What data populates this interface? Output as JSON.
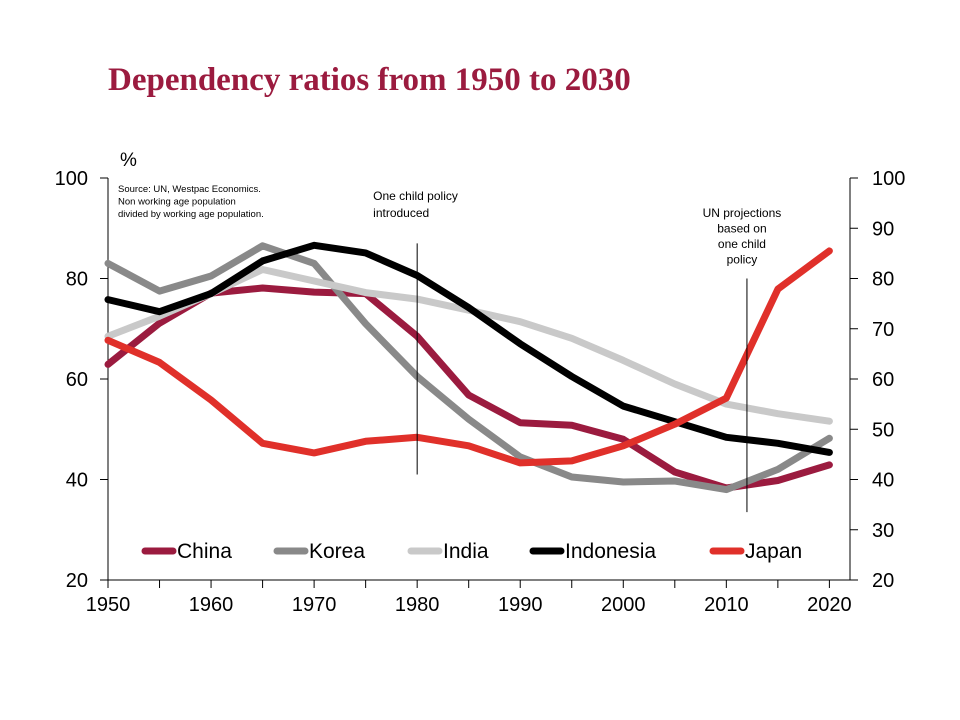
{
  "chart_data": {
    "type": "line",
    "title": "Dependency ratios from 1950 to 2030",
    "ylabel": "%",
    "x": [
      1950,
      1955,
      1960,
      1965,
      1970,
      1975,
      1980,
      1985,
      1990,
      1995,
      2000,
      2005,
      2010,
      2015,
      2020
    ],
    "xlim": [
      1950,
      2022
    ],
    "xticks": [
      1950,
      1960,
      1970,
      1980,
      1990,
      2000,
      2010,
      2020
    ],
    "ylim_left": [
      20,
      100
    ],
    "yticks_left": [
      20,
      40,
      60,
      80,
      100
    ],
    "ylim_right": [
      20,
      100
    ],
    "yticks_right": [
      20,
      30,
      40,
      50,
      60,
      70,
      80,
      90,
      100
    ],
    "grid": false,
    "legend_position": "bottom",
    "source_lines": [
      "Source: UN, Westpac Economics.",
      "Non working age population",
      "divided by working age population."
    ],
    "annotations": [
      {
        "lines": [
          "One child policy",
          "introduced"
        ],
        "x": 1980,
        "align": "left",
        "y_top": 87,
        "y_bottom": 41
      },
      {
        "lines": [
          "UN projections",
          "based on",
          "one child",
          "policy"
        ],
        "x": 2012,
        "align": "center",
        "y_top": 80,
        "y_bottom": 33.5
      }
    ],
    "series": [
      {
        "name": "China",
        "color": "#9b1b3f",
        "axis": "left",
        "values": [
          62.9,
          71.1,
          77.1,
          78.1,
          77.3,
          77.0,
          68.5,
          56.8,
          51.3,
          50.8,
          48.0,
          41.5,
          38.3,
          39.8,
          42.9
        ]
      },
      {
        "name": "Korea",
        "color": "#898989",
        "axis": "left",
        "values": [
          83.0,
          77.5,
          80.5,
          86.5,
          83.0,
          71.0,
          60.5,
          52.0,
          44.5,
          40.5,
          39.5,
          39.7,
          38.0,
          42.0,
          48.2
        ]
      },
      {
        "name": "India",
        "color": "#c9c9c9",
        "axis": "left",
        "values": [
          68.5,
          72.5,
          77.0,
          81.8,
          79.5,
          77.2,
          75.9,
          73.7,
          71.4,
          68.1,
          63.7,
          59.0,
          55.0,
          53.1,
          51.6
        ]
      },
      {
        "name": "Indonesia",
        "color": "#000000",
        "axis": "left",
        "values": [
          75.8,
          73.4,
          77.0,
          83.5,
          86.6,
          85.1,
          80.6,
          74.2,
          67.0,
          60.5,
          54.6,
          51.5,
          48.4,
          47.2,
          45.4
        ]
      },
      {
        "name": "Japan",
        "color": "#e0302a",
        "axis": "left",
        "values": [
          67.7,
          63.3,
          55.8,
          47.2,
          45.3,
          47.6,
          48.4,
          46.7,
          43.3,
          43.7,
          46.7,
          51.0,
          56.2,
          77.9,
          85.5
        ]
      }
    ]
  }
}
